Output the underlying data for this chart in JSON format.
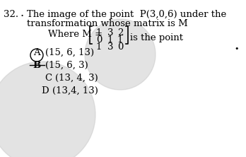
{
  "question_number": "32.",
  "question_text_line1": "The image of the point  P(3,0,6) under the",
  "question_text_line2": "transformation whose matrix is M",
  "where_text": "Where M =",
  "matrix_rows": [
    [
      "1",
      "3",
      "2"
    ],
    [
      "0",
      "1",
      "1"
    ],
    [
      "1",
      "3",
      "0"
    ]
  ],
  "is_the_point": "is the point",
  "option_A_text": "(15, 6, 13)",
  "option_B_text": "(15, 6, 3)",
  "option_C_text": "(13, 4, 3)",
  "option_D_text": "(13,4, 13)",
  "bg_color": "#ffffff",
  "text_color": "#000000",
  "watermark_color": "#c8c8c8",
  "font_size_main": 9.5
}
